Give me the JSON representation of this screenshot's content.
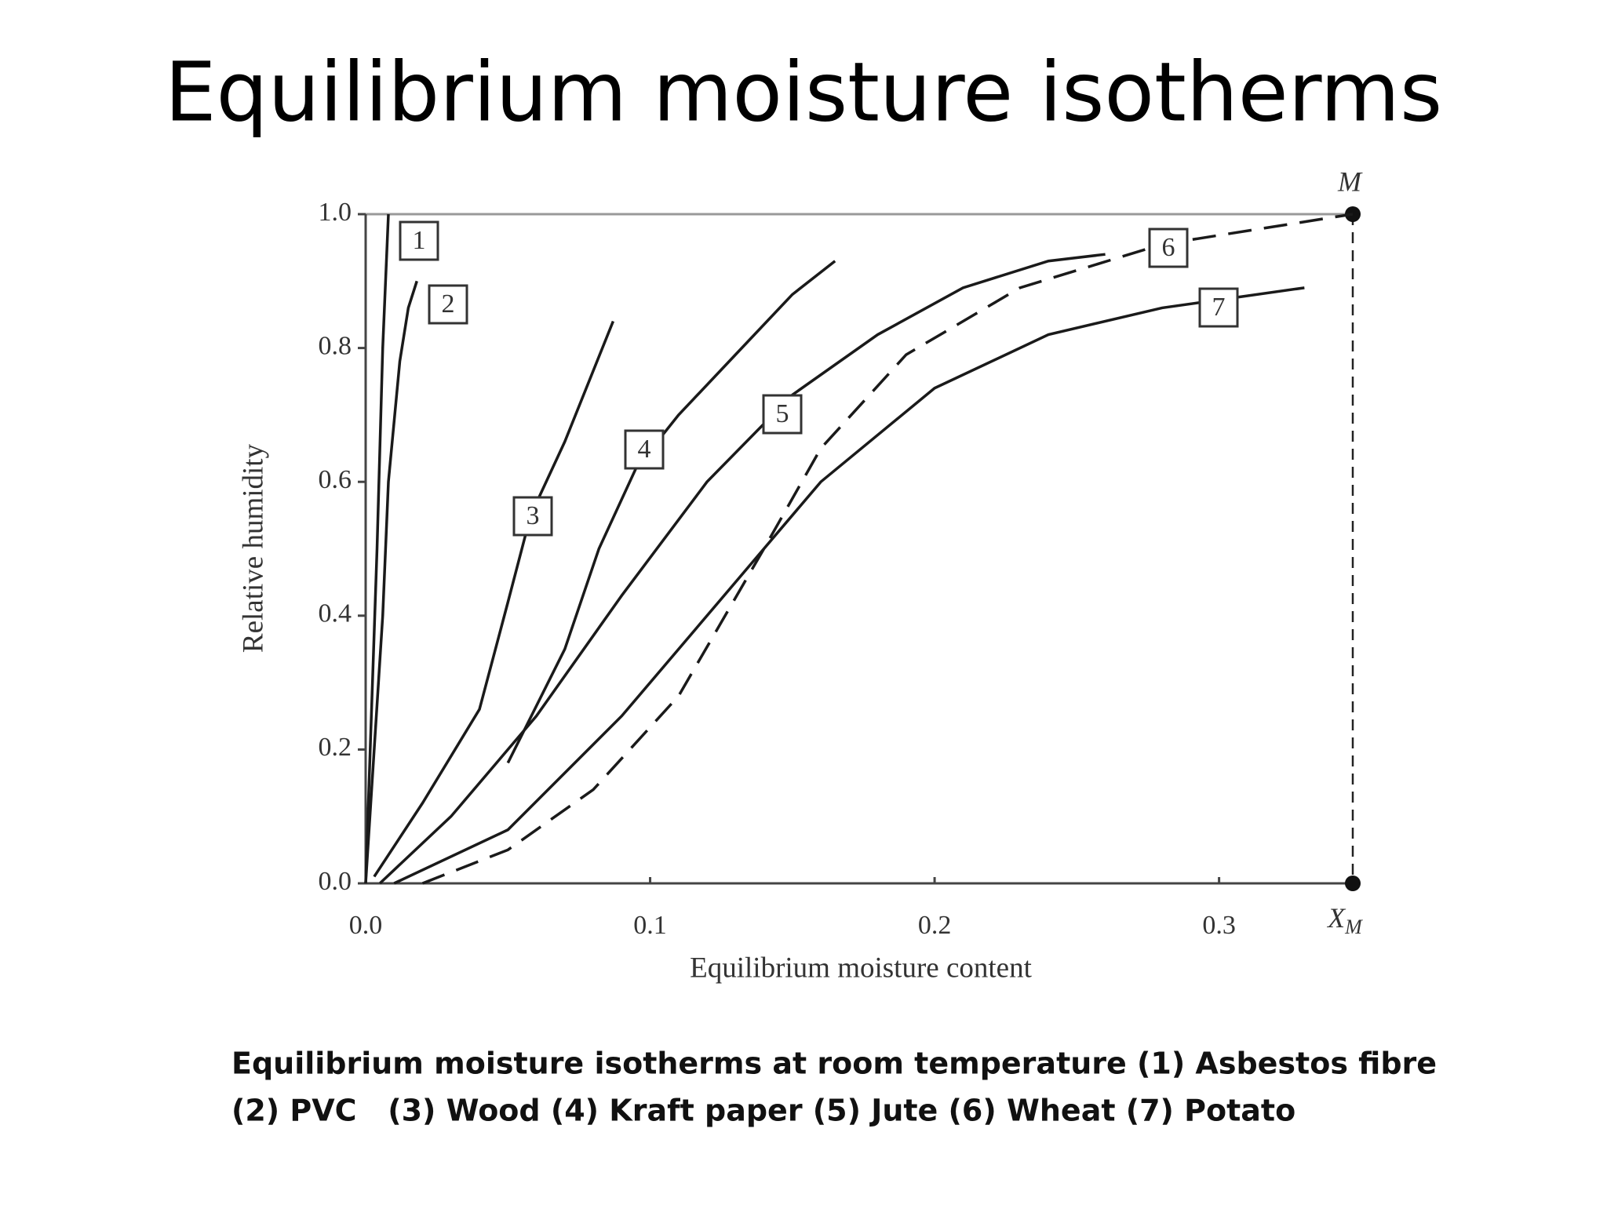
{
  "chart_data": {
    "type": "line",
    "title": "Equilibrium moisture isotherms",
    "xlabel": "Equilibrium moisture content",
    "ylabel": "Relative humidity",
    "xlim": [
      0,
      0.347
    ],
    "ylim": [
      0,
      1
    ],
    "xticks": [
      {
        "value": 0,
        "label": "0.0"
      },
      0.1,
      0.2,
      0.3
    ],
    "yticks": [
      {
        "value": 0,
        "label": "0.0"
      },
      0.2,
      0.4,
      0.6,
      0.8,
      {
        "value": 1,
        "label": "1.0"
      }
    ],
    "series": [
      {
        "name": "1",
        "color": "#1a1a1a",
        "x": [
          0,
          0.004,
          0.006,
          0.008
        ],
        "values": [
          0,
          0.5,
          0.8,
          1.0
        ]
      },
      {
        "name": "2",
        "color": "#1a1a1a",
        "x": [
          0,
          0.006,
          0.008,
          0.012,
          0.015,
          0.018
        ],
        "values": [
          0,
          0.4,
          0.6,
          0.78,
          0.86,
          0.9
        ]
      },
      {
        "name": "3",
        "color": "#1a1a1a",
        "x": [
          0.003,
          0.02,
          0.04,
          0.05,
          0.058,
          0.07,
          0.087
        ],
        "values": [
          0.01,
          0.12,
          0.26,
          0.42,
          0.55,
          0.66,
          0.84
        ]
      },
      {
        "name": "4",
        "color": "#1a1a1a",
        "x": [
          0.05,
          0.07,
          0.082,
          0.095,
          0.11,
          0.13,
          0.15,
          0.165
        ],
        "values": [
          0.18,
          0.35,
          0.5,
          0.62,
          0.7,
          0.79,
          0.88,
          0.93
        ]
      },
      {
        "name": "5",
        "color": "#1a1a1a",
        "x": [
          0.005,
          0.03,
          0.06,
          0.09,
          0.12,
          0.15,
          0.18,
          0.21,
          0.24,
          0.26
        ],
        "values": [
          0,
          0.1,
          0.25,
          0.43,
          0.6,
          0.73,
          0.82,
          0.89,
          0.93,
          0.94
        ]
      },
      {
        "name": "6",
        "color": "#1a1a1a",
        "dashed": true,
        "x": [
          0.02,
          0.05,
          0.08,
          0.11,
          0.14,
          0.16,
          0.19,
          0.23,
          0.28,
          0.347
        ],
        "values": [
          0,
          0.05,
          0.14,
          0.28,
          0.5,
          0.65,
          0.79,
          0.89,
          0.955,
          1.0
        ]
      },
      {
        "name": "7",
        "color": "#1a1a1a",
        "x": [
          0.01,
          0.05,
          0.09,
          0.13,
          0.16,
          0.2,
          0.24,
          0.28,
          0.33
        ],
        "values": [
          0,
          0.08,
          0.25,
          0.45,
          0.6,
          0.74,
          0.82,
          0.86,
          0.89
        ]
      }
    ],
    "marker_x": 0.347,
    "marker_label_top": "M",
    "marker_label_bottom": {
      "text": "X",
      "subscript": "M"
    },
    "caption": [
      "Equilibrium moisture isotherms at room temperature (1) Asbestos fibre",
      "(2) PVC   (3) Wood (4) Kraft paper (5) Jute (6) Wheat (7) Potato"
    ]
  }
}
